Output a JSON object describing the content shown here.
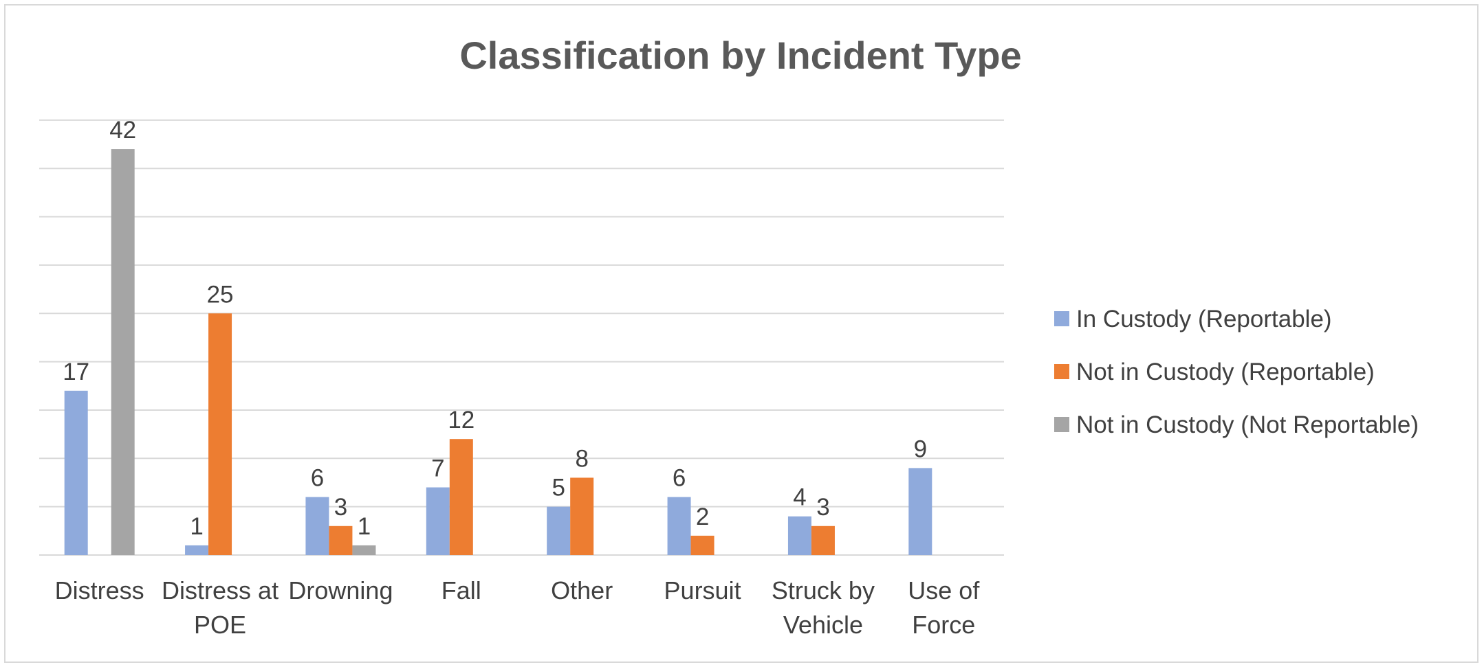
{
  "chart_data": {
    "type": "bar",
    "title": "Classification by Incident Type",
    "xlabel": "",
    "ylabel": "",
    "ylim": [
      0,
      45
    ],
    "grid": true,
    "legend_position": "right",
    "categories": [
      [
        "Distress"
      ],
      [
        "Distress at",
        "POE"
      ],
      [
        "Drowning"
      ],
      [
        "Fall"
      ],
      [
        "Other"
      ],
      [
        "Pursuit"
      ],
      [
        "Struck by",
        "Vehicle"
      ],
      [
        "Use of",
        "Force"
      ]
    ],
    "series": [
      {
        "name": "In Custody (Reportable)",
        "color": "#8faadc",
        "values": [
          17,
          1,
          6,
          7,
          5,
          6,
          4,
          9
        ]
      },
      {
        "name": "Not in Custody (Reportable)",
        "color": "#ed7d31",
        "values": [
          null,
          25,
          3,
          12,
          8,
          2,
          3,
          null
        ]
      },
      {
        "name": "Not in Custody (Not Reportable)",
        "color": "#a5a5a5",
        "values": [
          42,
          null,
          1,
          null,
          null,
          null,
          null,
          null
        ]
      }
    ]
  }
}
